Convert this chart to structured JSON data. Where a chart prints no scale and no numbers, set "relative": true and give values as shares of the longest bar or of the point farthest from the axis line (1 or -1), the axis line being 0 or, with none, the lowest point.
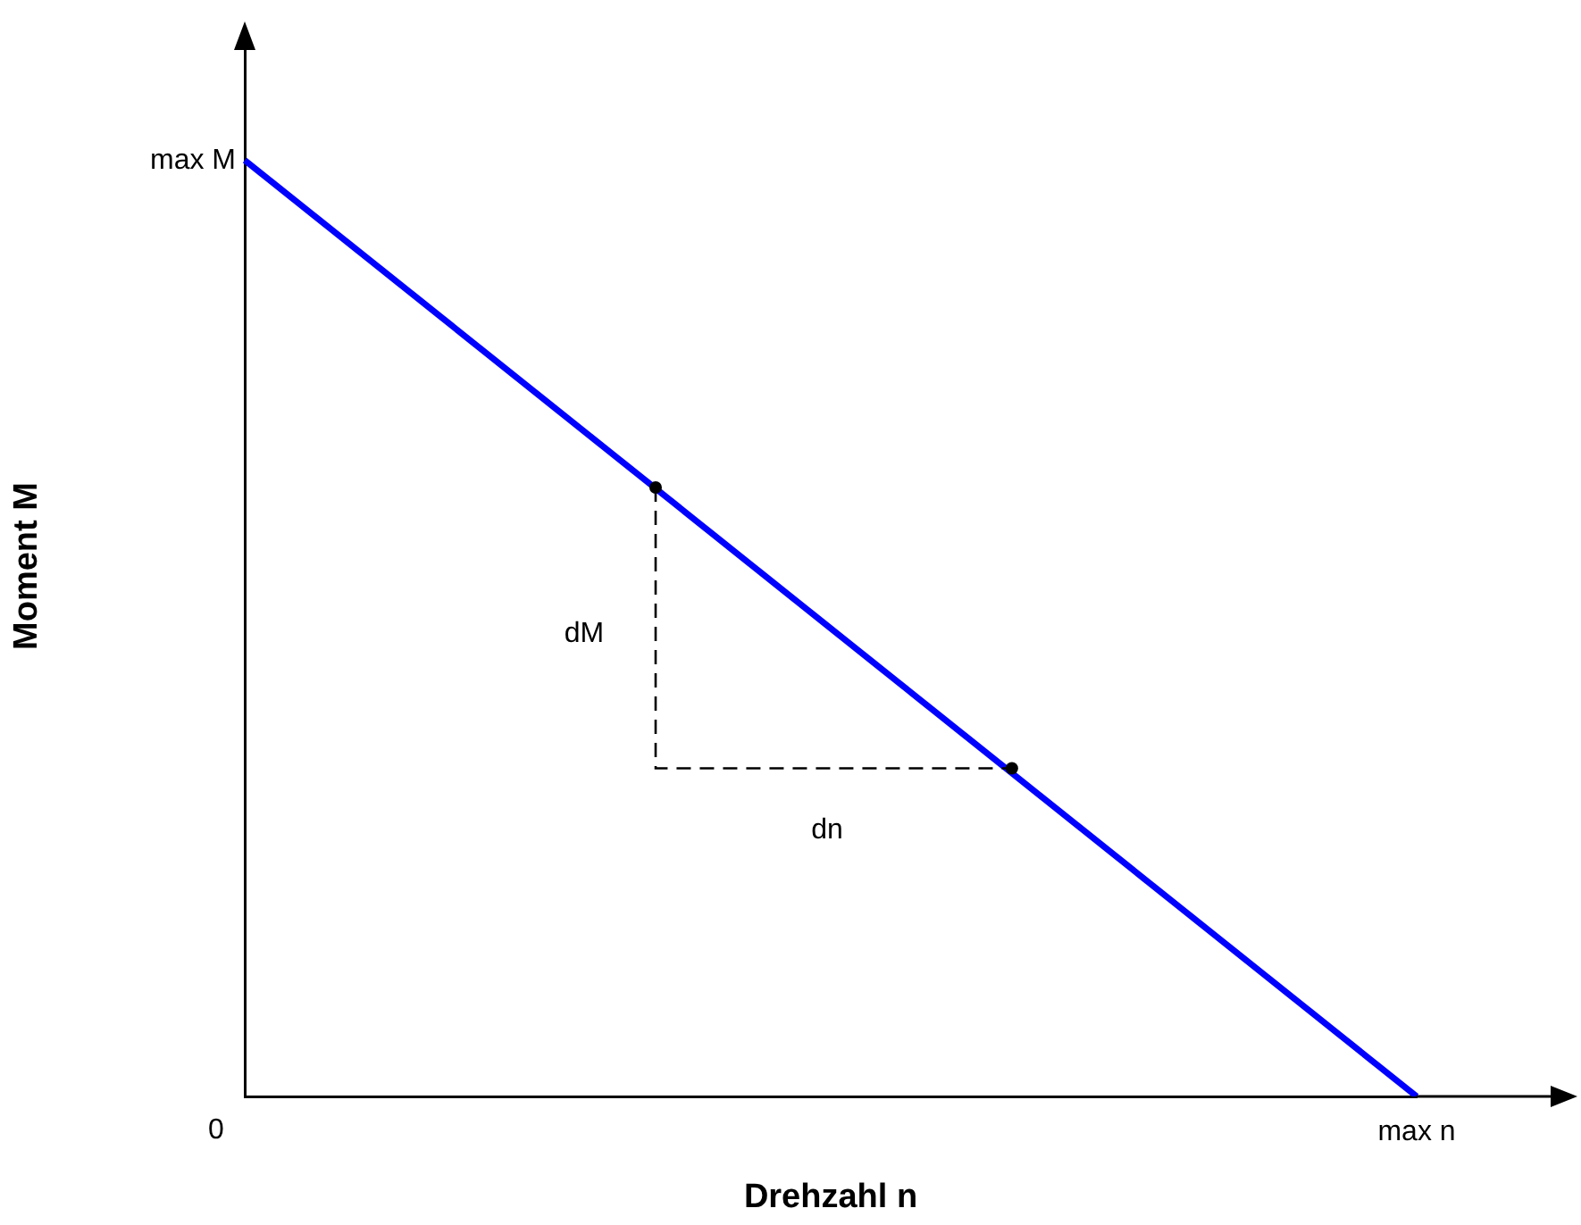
{
  "chart_data": {
    "type": "line",
    "xlabel": "Drehzahl n",
    "ylabel": "Moment M",
    "relative": true,
    "legend": false,
    "categories": [
      null,
      null
    ],
    "series": [
      {
        "color": "#0000ff",
        "values": [
          1,
          0
        ],
        "marker": "none",
        "line_style": "solid"
      }
    ],
    "annotations": [
      "max M",
      "0",
      "max n",
      "dM",
      "dn"
    ]
  }
}
